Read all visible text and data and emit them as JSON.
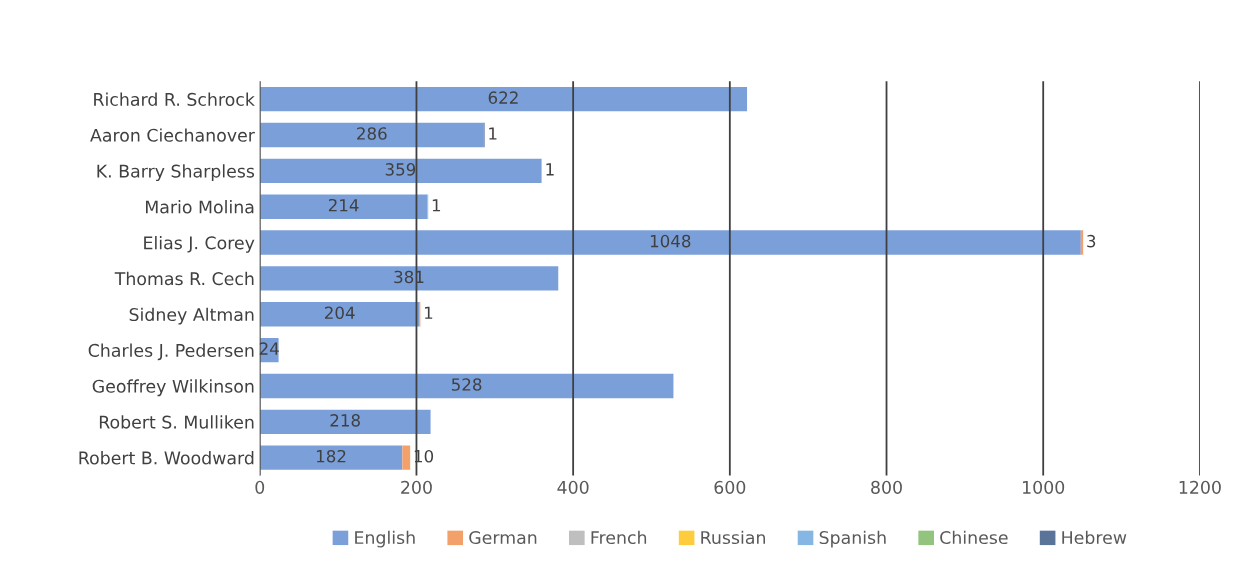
{
  "chart_data": {
    "type": "bar",
    "orientation": "horizontal",
    "stacked": true,
    "categories": [
      "Richard R. Schrock",
      "Aaron Ciechanover",
      "K. Barry Sharpless",
      "Mario Molina",
      "Elias J. Corey",
      "Thomas R. Cech",
      "Sidney Altman",
      "Charles J. Pedersen",
      "Geoffrey Wilkinson",
      "Robert S. Mulliken",
      "Robert B. Woodward"
    ],
    "series": [
      {
        "name": "English",
        "color": "#7a9fd9",
        "values": [
          622,
          286,
          359,
          214,
          1048,
          381,
          204,
          24,
          528,
          218,
          182
        ]
      },
      {
        "name": "German",
        "color": "#f4a06a",
        "values": [
          null,
          null,
          1,
          null,
          3,
          null,
          1,
          null,
          null,
          null,
          10
        ]
      },
      {
        "name": "French",
        "color": "#bfbfbf",
        "values": [
          null,
          null,
          null,
          null,
          null,
          null,
          null,
          null,
          null,
          null,
          null
        ]
      },
      {
        "name": "Russian",
        "color": "#ffcc3d",
        "values": [
          null,
          null,
          null,
          null,
          null,
          null,
          null,
          null,
          null,
          null,
          null
        ]
      },
      {
        "name": "Spanish",
        "color": "#86b6e3",
        "values": [
          null,
          null,
          null,
          1,
          null,
          null,
          null,
          null,
          null,
          null,
          null
        ]
      },
      {
        "name": "Chinese",
        "color": "#93c47d",
        "values": [
          null,
          null,
          null,
          null,
          null,
          null,
          null,
          null,
          null,
          null,
          null
        ]
      },
      {
        "name": "Hebrew",
        "color": "#5a7399",
        "values": [
          null,
          1,
          null,
          null,
          null,
          null,
          null,
          null,
          null,
          null,
          null
        ]
      }
    ],
    "xlim": [
      0,
      1200
    ],
    "xticks": [
      0,
      200,
      400,
      600,
      800,
      1000,
      1200
    ],
    "grid": "x",
    "legend": "bottom",
    "data_labels": true
  }
}
